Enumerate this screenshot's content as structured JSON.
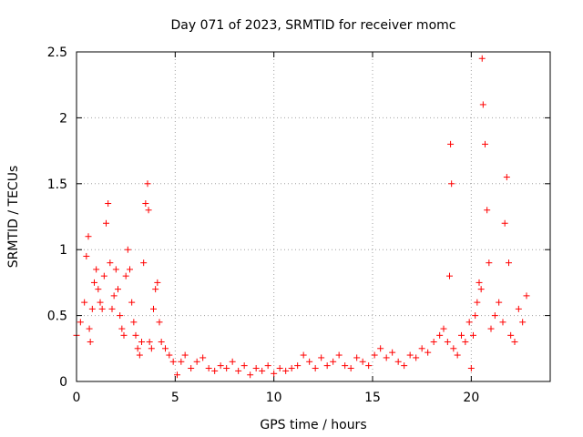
{
  "chart_data": {
    "type": "scatter",
    "title": "Day 071 of 2023, SRMTID for receiver momc",
    "xlabel": "GPS time / hours",
    "ylabel": "SRMTID / TECUs",
    "xlim": [
      0,
      24
    ],
    "ylim": [
      0,
      2.5
    ],
    "xticks": [
      0,
      5,
      10,
      15,
      20
    ],
    "xtick_labels": [
      "0",
      "5",
      "10",
      "15",
      "20"
    ],
    "yticks": [
      0,
      0.5,
      1,
      1.5,
      2,
      2.5
    ],
    "ytick_labels": [
      "0",
      "0.5",
      "1",
      "1.5",
      "2",
      "2.5"
    ],
    "grid": true,
    "marker": "+",
    "series": [
      {
        "name": "SRMTID",
        "color": "#ff0000",
        "x": [
          0.0,
          0.2,
          0.4,
          0.5,
          0.6,
          0.65,
          0.7,
          0.8,
          0.9,
          1.0,
          1.1,
          1.2,
          1.3,
          1.4,
          1.5,
          1.6,
          1.7,
          1.8,
          1.9,
          2.0,
          2.1,
          2.2,
          2.3,
          2.4,
          2.5,
          2.6,
          2.7,
          2.8,
          2.9,
          3.0,
          3.1,
          3.2,
          3.3,
          3.4,
          3.5,
          3.6,
          3.65,
          3.7,
          3.8,
          3.9,
          4.0,
          4.1,
          4.2,
          4.3,
          4.5,
          4.7,
          4.9,
          5.1,
          5.3,
          5.5,
          5.8,
          6.1,
          6.4,
          6.7,
          7.0,
          7.3,
          7.6,
          7.9,
          8.2,
          8.5,
          8.8,
          9.1,
          9.4,
          9.7,
          10.0,
          10.3,
          10.6,
          10.9,
          11.2,
          11.5,
          11.8,
          12.1,
          12.4,
          12.7,
          13.0,
          13.3,
          13.6,
          13.9,
          14.2,
          14.5,
          14.8,
          15.1,
          15.4,
          15.7,
          16.0,
          16.3,
          16.6,
          16.9,
          17.2,
          17.5,
          17.8,
          18.1,
          18.4,
          18.6,
          18.8,
          18.9,
          18.95,
          19.0,
          19.1,
          19.3,
          19.5,
          19.7,
          19.9,
          20.0,
          20.1,
          20.2,
          20.3,
          20.4,
          20.5,
          20.55,
          20.6,
          20.7,
          20.8,
          20.9,
          21.0,
          21.2,
          21.4,
          21.6,
          21.7,
          21.8,
          21.9,
          22.0,
          22.2,
          22.4,
          22.6,
          22.8
        ],
        "values": [
          0.35,
          0.45,
          0.6,
          0.95,
          1.1,
          0.4,
          0.3,
          0.55,
          0.75,
          0.85,
          0.7,
          0.6,
          0.55,
          0.8,
          1.2,
          1.35,
          0.9,
          0.55,
          0.65,
          0.85,
          0.7,
          0.5,
          0.4,
          0.35,
          0.8,
          1.0,
          0.85,
          0.6,
          0.45,
          0.35,
          0.25,
          0.2,
          0.3,
          0.9,
          1.35,
          1.5,
          1.3,
          0.3,
          0.25,
          0.55,
          0.7,
          0.75,
          0.45,
          0.3,
          0.25,
          0.2,
          0.15,
          0.05,
          0.15,
          0.2,
          0.1,
          0.15,
          0.18,
          0.1,
          0.08,
          0.12,
          0.1,
          0.15,
          0.08,
          0.12,
          0.05,
          0.1,
          0.08,
          0.12,
          0.06,
          0.1,
          0.08,
          0.1,
          0.12,
          0.2,
          0.15,
          0.1,
          0.18,
          0.12,
          0.15,
          0.2,
          0.12,
          0.1,
          0.18,
          0.15,
          0.12,
          0.2,
          0.25,
          0.18,
          0.22,
          0.15,
          0.12,
          0.2,
          0.18,
          0.25,
          0.22,
          0.3,
          0.35,
          0.4,
          0.3,
          0.8,
          1.8,
          1.5,
          0.25,
          0.2,
          0.35,
          0.3,
          0.45,
          0.1,
          0.35,
          0.5,
          0.6,
          0.75,
          0.7,
          2.45,
          2.1,
          1.8,
          1.3,
          0.9,
          0.4,
          0.5,
          0.6,
          0.45,
          1.2,
          1.55,
          0.9,
          0.35,
          0.3,
          0.55,
          0.45,
          0.65
        ]
      }
    ]
  }
}
